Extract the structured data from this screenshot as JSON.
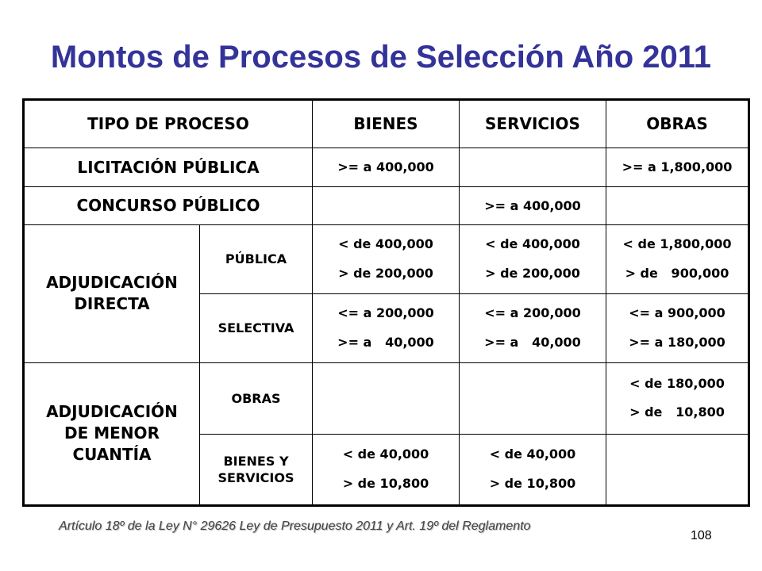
{
  "title": "Montos de Procesos de Selección Año 2011",
  "table": {
    "headers": [
      "TIPO DE PROCESO",
      "BIENES",
      "SERVICIOS",
      "OBRAS"
    ],
    "licitacion": {
      "label": "LICITACIÓN PÚBLICA",
      "bienes": ">= a 400,000",
      "servicios": "",
      "obras": ">= a 1,800,000"
    },
    "concurso": {
      "label": "CONCURSO PÚBLICO",
      "bienes": "",
      "servicios": ">= a 400,000",
      "obras": ""
    },
    "directa": {
      "label": "ADJUDICACIÓN DIRECTA",
      "publica": {
        "label": "PÚBLICA",
        "bienes": [
          "< de 400,000",
          "> de 200,000"
        ],
        "servicios": [
          "< de 400,000",
          "> de 200,000"
        ],
        "obras": [
          "< de 1,800,000",
          "> de   900,000"
        ]
      },
      "selectiva": {
        "label": "SELECTIVA",
        "bienes": [
          "<= a 200,000",
          ">= a   40,000"
        ],
        "servicios": [
          "<= a 200,000",
          ">= a   40,000"
        ],
        "obras": [
          "<= a 900,000",
          ">= a 180,000"
        ]
      }
    },
    "menor": {
      "label": "ADJUDICACIÓN DE MENOR CUANTÍA",
      "obras_row": {
        "label": "OBRAS",
        "obras": [
          "< de 180,000",
          "> de   10,800"
        ]
      },
      "bys_row": {
        "label": "BIENES Y SERVICIOS",
        "bienes": [
          "< de 40,000",
          "> de 10,800"
        ],
        "servicios": [
          "< de 40,000",
          "> de 10,800"
        ]
      }
    }
  },
  "footer": "Artículo 18º de la Ley N° 29626 Ley de Presupuesto 2011 y Art. 19º del Reglamento",
  "page_number": "108"
}
